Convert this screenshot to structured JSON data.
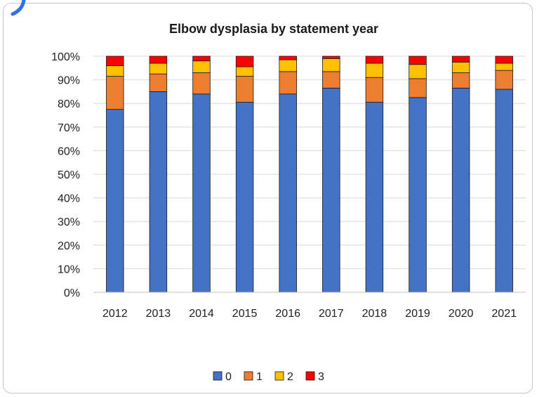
{
  "chart_data": {
    "type": "bar",
    "stacked": true,
    "percent": true,
    "title": "Elbow dysplasia by statement year",
    "xlabel": "",
    "ylabel": "",
    "ylim": [
      0,
      100
    ],
    "y_ticks": [
      "0%",
      "10%",
      "20%",
      "30%",
      "40%",
      "50%",
      "60%",
      "70%",
      "80%",
      "90%",
      "100%"
    ],
    "categories": [
      "2012",
      "2013",
      "2014",
      "2015",
      "2016",
      "2017",
      "2018",
      "2019",
      "2020",
      "2021"
    ],
    "series": [
      {
        "name": "0",
        "color": "#4472C4",
        "values": [
          77.5,
          85.0,
          84.0,
          80.5,
          84.0,
          86.5,
          80.5,
          82.5,
          86.5,
          86.0
        ]
      },
      {
        "name": "1",
        "color": "#ED7D31",
        "values": [
          14.0,
          7.5,
          9.0,
          11.0,
          9.5,
          7.0,
          10.5,
          8.0,
          6.5,
          8.0
        ]
      },
      {
        "name": "2",
        "color": "#FFC000",
        "values": [
          4.5,
          4.5,
          5.0,
          4.0,
          5.0,
          5.5,
          6.0,
          6.0,
          4.5,
          3.0
        ]
      },
      {
        "name": "3",
        "color": "#FF0000",
        "values": [
          4.0,
          3.0,
          2.0,
          4.5,
          1.5,
          1.0,
          3.0,
          3.5,
          2.5,
          3.0
        ]
      }
    ],
    "grid": true,
    "legend_position": "bottom"
  }
}
